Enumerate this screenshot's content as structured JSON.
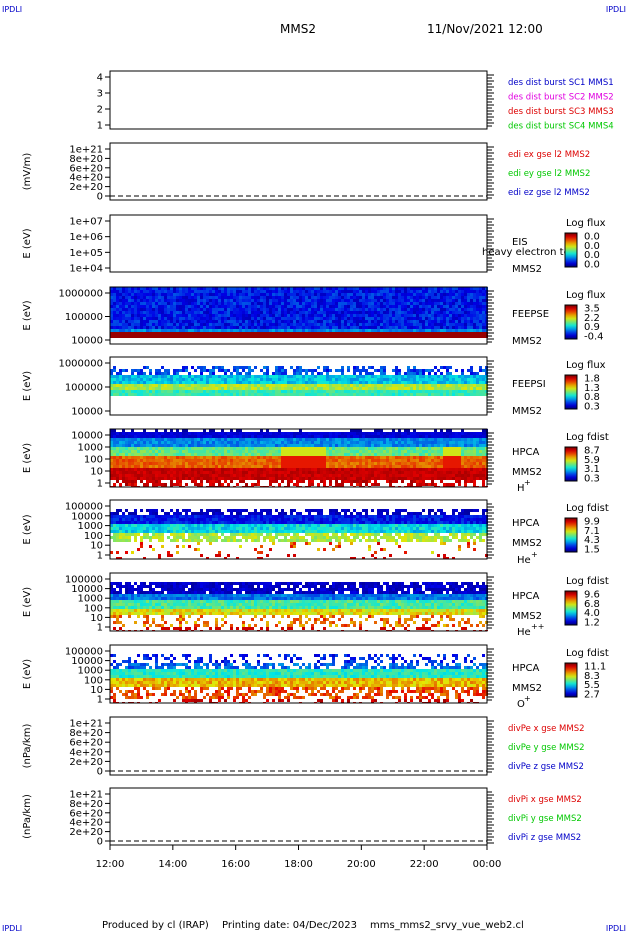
{
  "header": {
    "corner_tl": "IPDLI",
    "corner_tr": "IPDLI",
    "corner_bl": "IPDLI",
    "corner_br": "IPDLI",
    "mission": "MMS2",
    "datetime": "11/Nov/2021 12:00"
  },
  "footer": {
    "produced_by": "Produced by cl (IRAP)",
    "printing_date": "Printing date: 04/Dec/2023",
    "script_name": "mms_mms2_srvy_vue_web2.cl"
  },
  "colors": {
    "blue": "#0000c8",
    "magenta": "#e000e0",
    "red": "#dd0000",
    "green": "#00c800"
  },
  "chart_data": [
    {
      "type": "line",
      "title": "",
      "ylabel": "",
      "yticks": [
        "4",
        "3",
        "2",
        "1"
      ],
      "legend": [
        {
          "text": "des dist burst SC1 MMS1",
          "color": "#0000c8"
        },
        {
          "text": "des dist burst SC2 MMS2",
          "color": "#e000e0"
        },
        {
          "text": "des dist burst SC3 MMS3",
          "color": "#dd0000"
        },
        {
          "text": "des dist burst SC4 MMS4",
          "color": "#00c800"
        }
      ]
    },
    {
      "type": "line",
      "ylabel": "(mV/m)",
      "yticks": [
        "1e+21",
        "8e+20",
        "6e+20",
        "4e+20",
        "2e+20",
        "0"
      ],
      "legend": [
        {
          "text": "edi ex gse l2 MMS2",
          "color": "#dd0000"
        },
        {
          "text": "edi ey gse l2 MMS2",
          "color": "#00c800"
        },
        {
          "text": "edi ez gse l2 MMS2",
          "color": "#0000c8"
        }
      ]
    },
    {
      "type": "heatmap",
      "ylabel": "E (eV)",
      "yticks": [
        "1e+07",
        "1e+06",
        "1e+05",
        "1e+04"
      ],
      "label_lines": [
        "EIS",
        "MMS2"
      ],
      "overlay_text": "heavy electron to",
      "colorbar_title": "Log flux",
      "colorbar_ticks": [
        "0.0",
        "0.0",
        "0.0",
        "0.0"
      ]
    },
    {
      "type": "heatmap",
      "ylabel": "E (eV)",
      "yticks": [
        "1000000",
        "100000",
        "10000"
      ],
      "label_lines": [
        "FEEPSE",
        "MMS2"
      ],
      "colorbar_title": "Log flux",
      "colorbar_ticks": [
        "3.5",
        "2.2",
        "0.9",
        "-0.4"
      ]
    },
    {
      "type": "heatmap",
      "ylabel": "E (eV)",
      "yticks": [
        "1000000",
        "100000",
        "10000"
      ],
      "label_lines": [
        "FEEPSI",
        "MMS2"
      ],
      "colorbar_title": "Log flux",
      "colorbar_ticks": [
        "1.8",
        "1.3",
        "0.8",
        "0.3"
      ]
    },
    {
      "type": "heatmap",
      "ylabel": "E (eV)",
      "yticks": [
        "10000",
        "1000",
        "100",
        "10",
        "1"
      ],
      "label_lines": [
        "HPCA",
        "MMS2"
      ],
      "species": "H",
      "charge": "+",
      "colorbar_title": "Log fdist",
      "colorbar_ticks": [
        "8.7",
        "5.9",
        "3.1",
        "0.3"
      ]
    },
    {
      "type": "heatmap",
      "ylabel": "E (eV)",
      "yticks": [
        "100000",
        "10000",
        "1000",
        "100",
        "10",
        "1"
      ],
      "label_lines": [
        "HPCA",
        "MMS2"
      ],
      "species": "He",
      "charge": "+",
      "colorbar_title": "Log fdist",
      "colorbar_ticks": [
        "9.9",
        "7.1",
        "4.3",
        "1.5"
      ]
    },
    {
      "type": "heatmap",
      "ylabel": "E (eV)",
      "yticks": [
        "100000",
        "10000",
        "1000",
        "100",
        "10",
        "1"
      ],
      "label_lines": [
        "HPCA",
        "MMS2"
      ],
      "species": "He",
      "charge": "++",
      "colorbar_title": "Log fdist",
      "colorbar_ticks": [
        "9.6",
        "6.8",
        "4.0",
        "1.2"
      ]
    },
    {
      "type": "heatmap",
      "ylabel": "E (eV)",
      "yticks": [
        "100000",
        "10000",
        "1000",
        "100",
        "10",
        "1"
      ],
      "label_lines": [
        "HPCA",
        "MMS2"
      ],
      "species": "O",
      "charge": "+",
      "colorbar_title": "Log fdist",
      "colorbar_ticks": [
        "11.1",
        "8.3",
        "5.5",
        "2.7"
      ]
    },
    {
      "type": "line",
      "ylabel": "(nPa/km)",
      "yticks": [
        "1e+21",
        "8e+20",
        "6e+20",
        "4e+20",
        "2e+20",
        "0"
      ],
      "legend": [
        {
          "text": "divPe x gse MMS2",
          "color": "#dd0000"
        },
        {
          "text": "divPe y gse MMS2",
          "color": "#00c800"
        },
        {
          "text": "divPe z gse MMS2",
          "color": "#0000c8"
        }
      ]
    },
    {
      "type": "line",
      "ylabel": "(nPa/km)",
      "yticks": [
        "1e+21",
        "8e+20",
        "6e+20",
        "4e+20",
        "2e+20",
        "0"
      ],
      "legend": [
        {
          "text": "divPi x gse MMS2",
          "color": "#dd0000"
        },
        {
          "text": "divPi y gse MMS2",
          "color": "#00c800"
        },
        {
          "text": "divPi z gse MMS2",
          "color": "#0000c8"
        }
      ],
      "xticks": [
        "12:00",
        "14:00",
        "16:00",
        "18:00",
        "20:00",
        "22:00",
        "00:00"
      ]
    }
  ]
}
